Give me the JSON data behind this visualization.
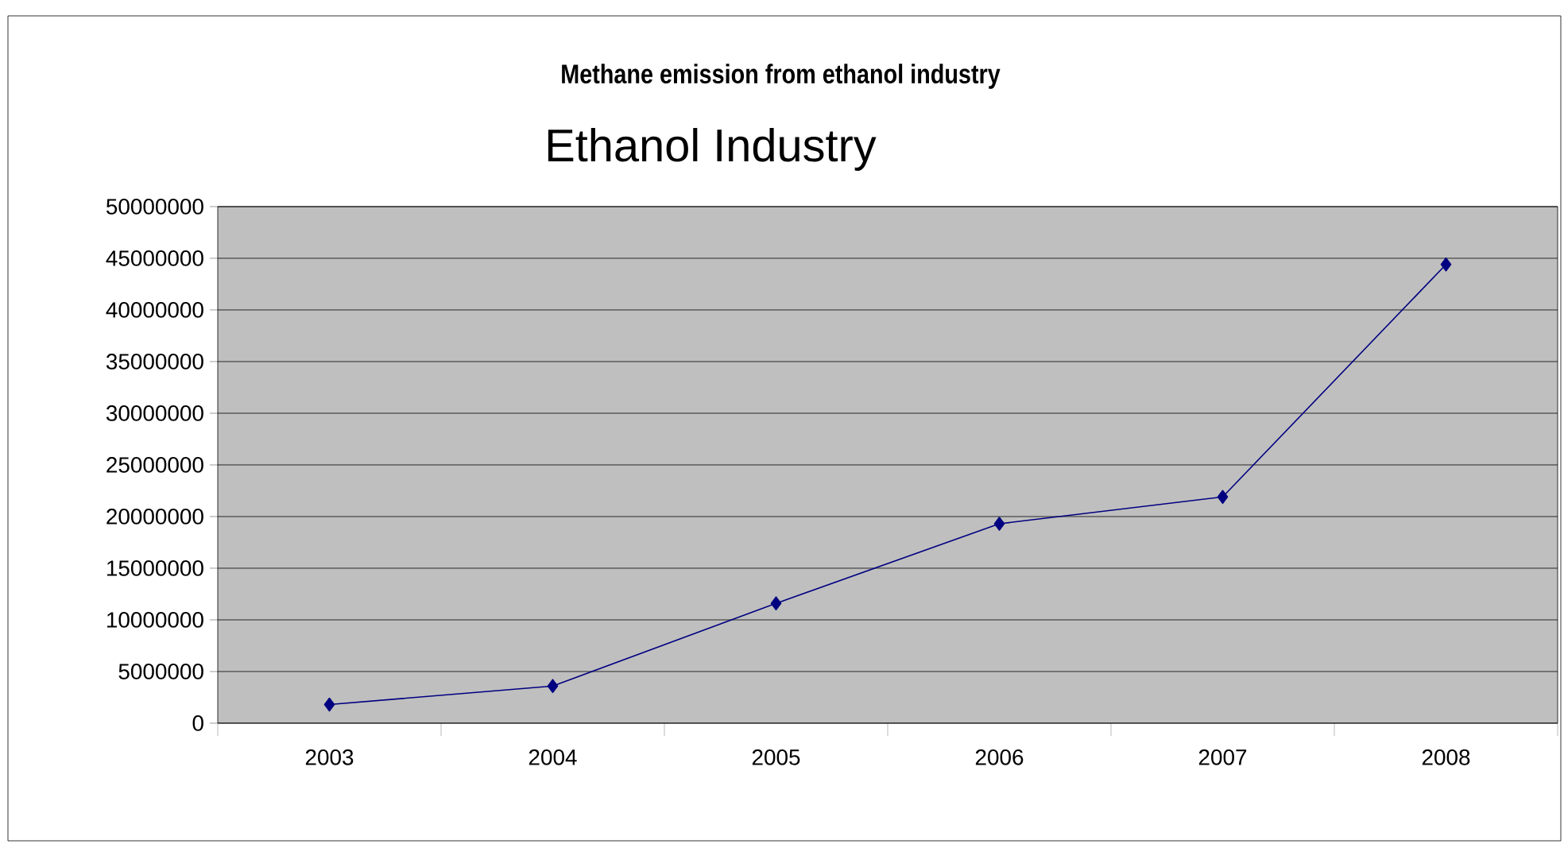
{
  "chart_data": {
    "type": "line",
    "title": "Methane emission from ethanol industry",
    "subtitle": "Ethanol Industry",
    "categories": [
      "2003",
      "2004",
      "2005",
      "2006",
      "2007",
      "2008"
    ],
    "series": [
      {
        "color": "#000080",
        "values": [
          1800000,
          3600000,
          11600000,
          19300000,
          21900000,
          44400000
        ]
      }
    ],
    "ylim": [
      0,
      50000000
    ],
    "yticks": [
      0,
      5000000,
      10000000,
      15000000,
      20000000,
      25000000,
      30000000,
      35000000,
      40000000,
      45000000,
      50000000
    ],
    "grid": "y",
    "marker": "diamond",
    "line_style": "solid"
  }
}
